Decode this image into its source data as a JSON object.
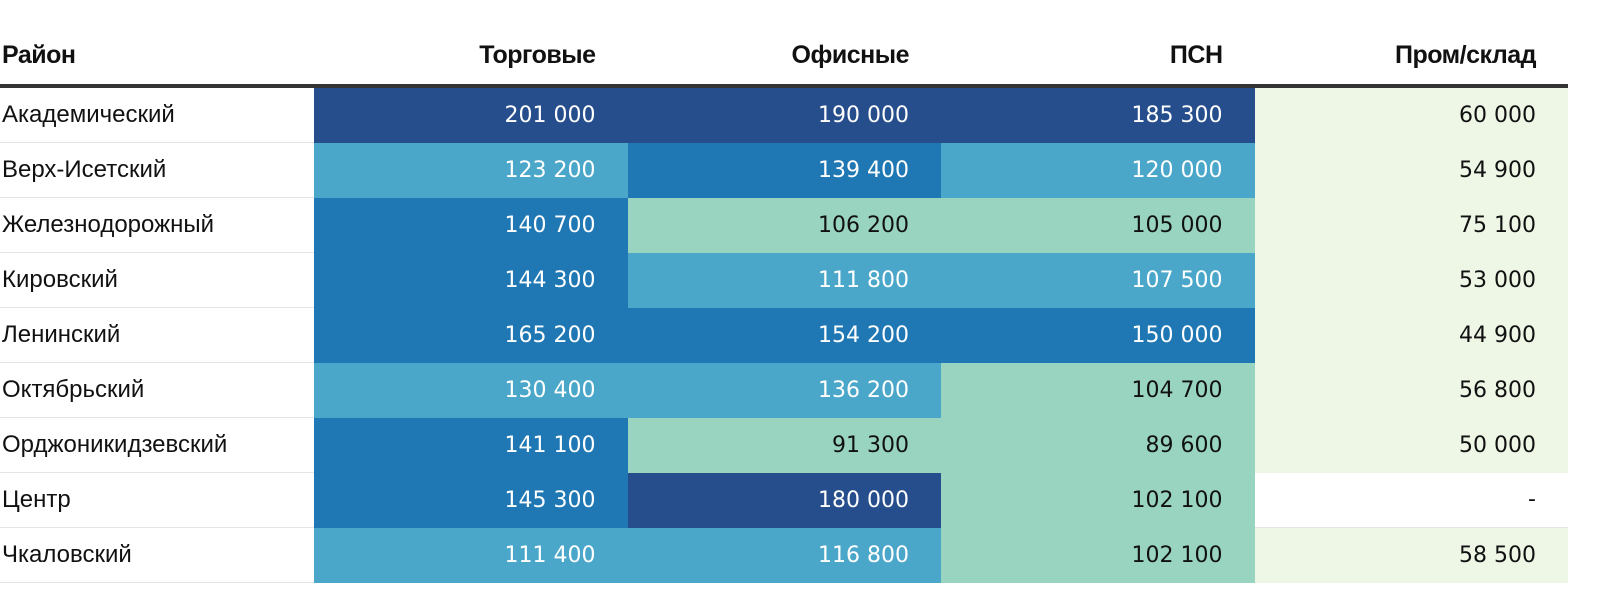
{
  "chart_data": {
    "type": "table",
    "columns": [
      "Район",
      "Торговые",
      "Офисные",
      "ПСН",
      "Пром/склад"
    ],
    "rows": [
      {
        "name": "Академический",
        "values": [
          "201 000",
          "190 000",
          "185 300",
          "60 000"
        ]
      },
      {
        "name": "Верх-Исетский",
        "values": [
          "123 200",
          "139 400",
          "120 000",
          "54 900"
        ]
      },
      {
        "name": "Железнодорожный",
        "values": [
          "140 700",
          "106 200",
          "105 000",
          "75 100"
        ]
      },
      {
        "name": "Кировский",
        "values": [
          "144 300",
          "111 800",
          "107 500",
          "53 000"
        ]
      },
      {
        "name": "Ленинский",
        "values": [
          "165 200",
          "154 200",
          "150 000",
          "44 900"
        ]
      },
      {
        "name": "Октябрьский",
        "values": [
          "130 400",
          "136 200",
          "104 700",
          "56 800"
        ]
      },
      {
        "name": "Орджоникидзевский",
        "values": [
          "141 100",
          "91 300",
          "89 600",
          "50 000"
        ]
      },
      {
        "name": "Центр",
        "values": [
          "145 300",
          "180 000",
          "102 100",
          "-"
        ]
      },
      {
        "name": "Чкаловский",
        "values": [
          "111 400",
          "116 800",
          "102 100",
          "58 500"
        ]
      }
    ],
    "color_scale": [
      {
        "min": 180000,
        "color": "#264e8c",
        "text": "#ffffff"
      },
      {
        "min": 138000,
        "color": "#1f78b4",
        "text": "#ffffff"
      },
      {
        "min": 107000,
        "color": "#4aa7c9",
        "text": "#ffffff"
      },
      {
        "min": 80000,
        "color": "#98d4c0",
        "text": "#111111"
      },
      {
        "min": 1,
        "color": "#eef7e6",
        "text": "#111111"
      }
    ],
    "empty_color": "#ffffff"
  }
}
